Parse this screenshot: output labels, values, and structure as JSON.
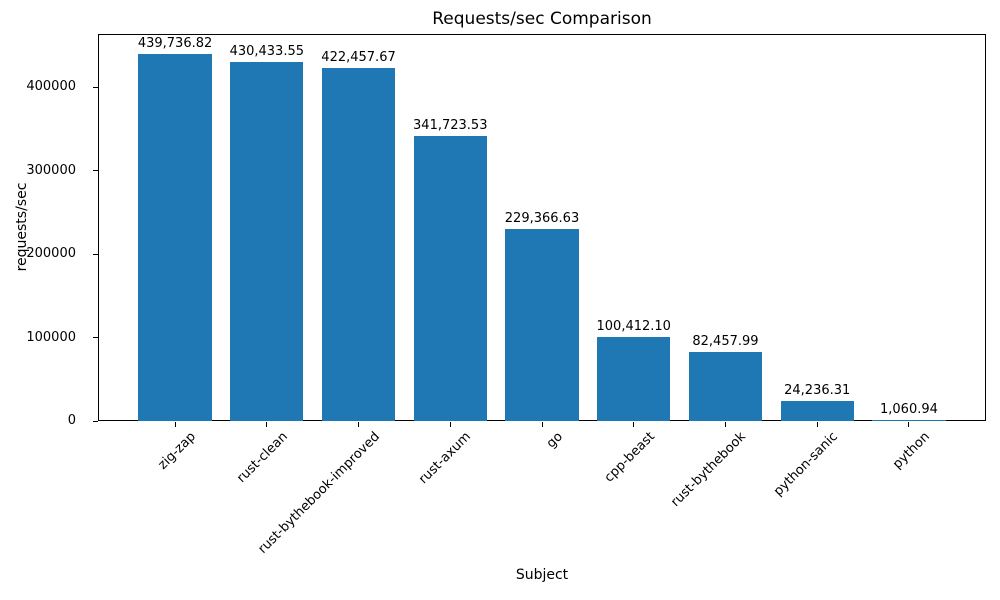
{
  "chart_data": {
    "type": "bar",
    "title": "Requests/sec Comparison",
    "xlabel": "Subject",
    "ylabel": "requests/sec",
    "categories": [
      "zig-zap",
      "rust-clean",
      "rust-bythebook-improved",
      "rust-axum",
      "go",
      "cpp-beast",
      "rust-bythebook",
      "python-sanic",
      "python"
    ],
    "values": [
      439736.82,
      430433.55,
      422457.67,
      341723.53,
      229366.63,
      100412.1,
      82457.99,
      24236.31,
      1060.94
    ],
    "value_labels": [
      "439,736.82",
      "430,433.55",
      "422,457.67",
      "341,723.53",
      "229,366.63",
      "100,412.10",
      "82,457.99",
      "24,236.31",
      "1,060.94"
    ],
    "yticks": [
      0,
      100000,
      200000,
      300000,
      400000
    ],
    "ytick_labels": [
      "0",
      "100000",
      "200000",
      "300000",
      "400000"
    ],
    "ylim": [
      0,
      463500
    ],
    "bar_color": "#1f77b4",
    "text_color": "#000000",
    "grid": false,
    "legend": null,
    "x_tick_rotation": 45,
    "bar_width_fraction": 0.8
  }
}
